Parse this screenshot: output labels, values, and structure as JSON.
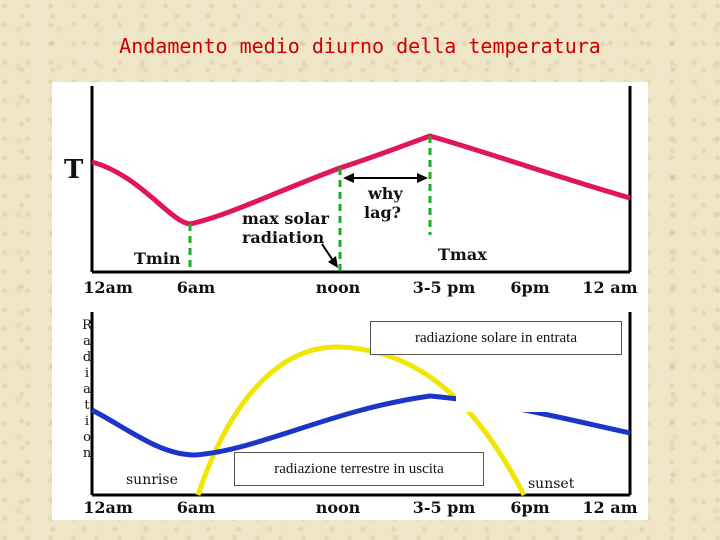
{
  "title": "Andamento medio diurno della temperatura",
  "top_chart": {
    "y_label": "T",
    "x_labels": [
      "12am",
      "6am",
      "noon",
      "3-5 pm",
      "6pm",
      "12 am"
    ],
    "annotations": {
      "tmin": "Tmin",
      "tmax": "Tmax",
      "max_solar_line1": "max solar",
      "max_solar_line2": "radiation",
      "why_line1": "why",
      "why_line2": "lag?"
    }
  },
  "bottom_chart": {
    "y_label_letters": [
      "R",
      "a",
      "d",
      "i",
      "a",
      "t",
      "i",
      "o",
      "n"
    ],
    "x_labels": [
      "12am",
      "6am",
      "noon",
      "3-5 pm",
      "6pm",
      "12 am"
    ],
    "sunrise": "sunrise",
    "sunset": "sunset",
    "incoming_label": "radiazione solare in entrata",
    "outgoing_label": "radiazione terrestre in uscita"
  },
  "colors": {
    "temperature_curve": "#e0155a",
    "solar_curve": "#f2e600",
    "terrestrial_curve": "#1a35c9",
    "marker_lines": "#22aa22",
    "title": "#cc0000"
  }
}
